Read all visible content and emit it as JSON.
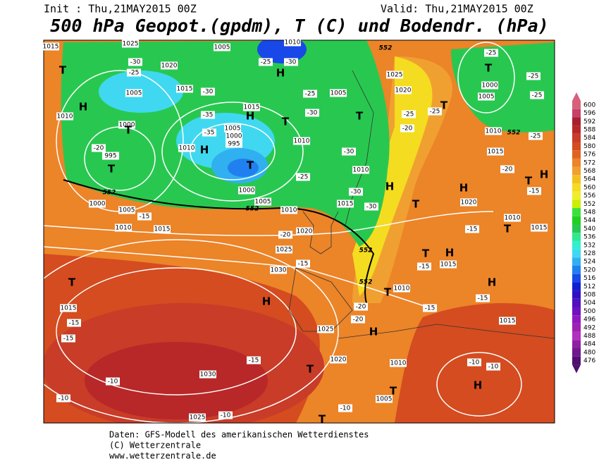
{
  "header": {
    "init": "Init : Thu,21MAY2015 00Z",
    "valid": "Valid: Thu,21MAY2015 00Z",
    "title": "500 hPa Geopot.(gpdm), T (C) und Bodendr. (hPa)"
  },
  "colorbar": {
    "ticks": [
      600,
      596,
      592,
      588,
      584,
      580,
      576,
      572,
      568,
      564,
      560,
      556,
      552,
      548,
      544,
      540,
      536,
      532,
      528,
      524,
      520,
      516,
      512,
      508,
      504,
      500,
      496,
      492,
      488,
      484,
      480,
      476
    ],
    "colors": [
      "#d8607a",
      "#c8406a",
      "#a82030",
      "#b82828",
      "#c83c28",
      "#d44c20",
      "#e06420",
      "#ec8428",
      "#f0a030",
      "#f4c020",
      "#f4dc20",
      "#f0ec30",
      "#c8f000",
      "#3ce03c",
      "#20d020",
      "#28c850",
      "#30e890",
      "#30f0d0",
      "#40d8f0",
      "#30b0f0",
      "#2080f0",
      "#1848e8",
      "#1020d0",
      "#3010c0",
      "#5010c0",
      "#7010c0",
      "#9018c0",
      "#a020b0",
      "#b030c0",
      "#9020a0",
      "#701890",
      "#501070"
    ]
  },
  "map": {
    "pressure_labels": [
      1015,
      1025,
      1005,
      1010,
      1020,
      1015,
      1005,
      1010,
      1015,
      1005,
      1020,
      1025,
      1000,
      1005,
      1000,
      995,
      1010,
      1010,
      995,
      1000,
      1005,
      1010,
      1015,
      1000,
      1005,
      1010,
      1015,
      1010,
      1020,
      1025,
      1030,
      1015,
      1030,
      1025,
      1025,
      1020,
      1010,
      1005,
      1010,
      1015,
      1015,
      1020,
      1010,
      1015,
      1015,
      1010,
      1000,
      1005
    ],
    "temperature_labels": [
      -30,
      -25,
      -30,
      -25,
      -30,
      -25,
      -30,
      -35,
      -35,
      -20,
      -25,
      -30,
      -30,
      -30,
      -25,
      -20,
      -25,
      -25,
      -25,
      -25,
      -25,
      -20,
      -15,
      -15,
      -15,
      -15,
      -15,
      -15,
      -15,
      -15,
      -15,
      -15,
      -10,
      -10,
      -10,
      -10,
      -10,
      -10,
      -20,
      -20,
      -20
    ],
    "geopotential_labels": [
      552,
      552,
      552,
      552,
      552,
      552
    ],
    "pressure_centers": [
      "T",
      "H",
      "T",
      "T",
      "H",
      "T",
      "H",
      "H",
      "T",
      "T",
      "H",
      "H",
      "T",
      "T",
      "H",
      "T",
      "T",
      "H",
      "T",
      "H",
      "T",
      "H",
      "H",
      "T",
      "T",
      "H",
      "T",
      "T",
      "T"
    ]
  },
  "footer": {
    "line1": "Daten: GFS-Modell des amerikanischen Wetterdienstes",
    "line2": "(C) Wetterzentrale",
    "line3": "www.wetterzentrale.de"
  }
}
